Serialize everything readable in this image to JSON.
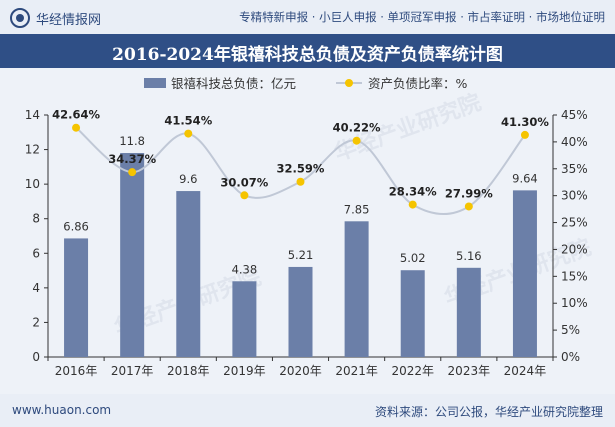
{
  "header": {
    "brand": "华经情报网",
    "tags": "专精特新申报 · 小巨人申报 · 单项冠军申报 · 市占率证明 · 市场地位证明"
  },
  "footer": {
    "website": "www.huaon.com",
    "source": "资料来源：公司公报，华经产业研究院整理"
  },
  "watermark": "华经产业研究院",
  "colors": {
    "bar": "#6b7fa8",
    "line": "#c0c8d6",
    "marker": "#f5c400",
    "title_bg": "#2f4f86"
  },
  "chart_data": {
    "type": "bar",
    "title": "2016-2024年银禧科技总负债及资产负债率统计图",
    "categories": [
      "2016年",
      "2017年",
      "2018年",
      "2019年",
      "2020年",
      "2021年",
      "2022年",
      "2023年",
      "2024年"
    ],
    "series": [
      {
        "name": "银禧科技总负债：亿元",
        "type": "bar",
        "axis": "left",
        "values": [
          6.86,
          11.8,
          9.6,
          4.38,
          5.21,
          7.85,
          5.02,
          5.16,
          9.64
        ],
        "labels": [
          "6.86",
          "11.8",
          "9.6",
          "4.38",
          "5.21",
          "7.85",
          "5.02",
          "5.16",
          "9.64"
        ]
      },
      {
        "name": "资产负债比率：%",
        "type": "line",
        "axis": "right",
        "values": [
          42.64,
          34.37,
          41.54,
          30.07,
          32.59,
          40.22,
          28.34,
          27.99,
          41.3
        ],
        "labels": [
          "42.64%",
          "34.37%",
          "41.54%",
          "30.07%",
          "32.59%",
          "40.22%",
          "28.34%",
          "27.99%",
          "41.30%"
        ]
      }
    ],
    "left_axis": {
      "min": 0,
      "max": 14,
      "ticks": [
        "0",
        "2",
        "4",
        "6",
        "8",
        "10",
        "12",
        "14"
      ]
    },
    "right_axis": {
      "min": 0,
      "max": 45,
      "ticks": [
        "0%",
        "5%",
        "10%",
        "15%",
        "20%",
        "25%",
        "30%",
        "35%",
        "40%",
        "45%"
      ]
    },
    "legend_position": "top",
    "grid": false
  }
}
